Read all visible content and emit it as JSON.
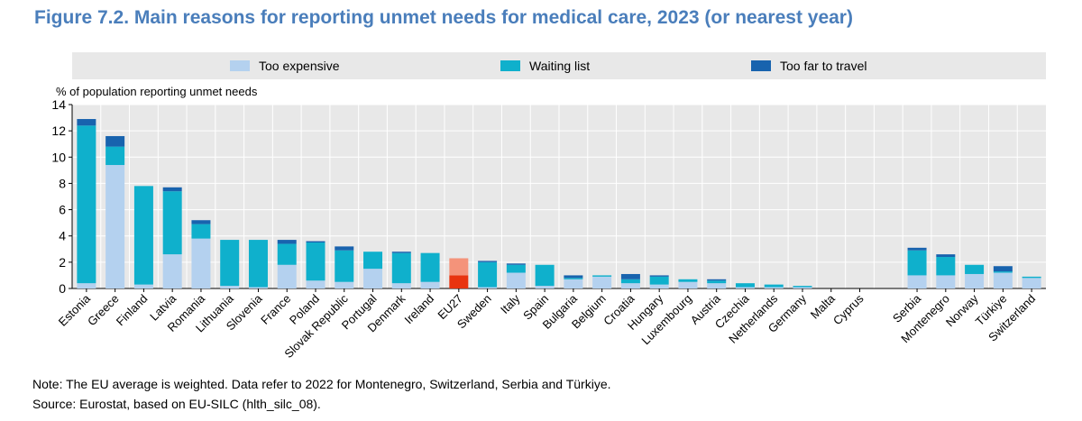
{
  "title": "Figure 7.2. Main reasons for reporting unmet needs for medical care, 2023 (or nearest year)",
  "legend": {
    "expensive": "Too expensive",
    "waiting": "Waiting list",
    "travel": "Too far to travel"
  },
  "note": "Note: The EU average is weighted. Data refer to 2022 for Montenegro, Switzerland, Serbia and Türkiye.",
  "source": "Source: Eurostat, based on EU-SILC (hlth_silc_08).",
  "chart_data": {
    "type": "bar",
    "stacked": true,
    "ylabel": "% of population reporting unmet needs",
    "ylim": [
      0,
      14
    ],
    "yticks": [
      0,
      2,
      4,
      6,
      8,
      10,
      12,
      14
    ],
    "colors": {
      "expensive": "#b4d1ef",
      "waiting": "#0fb0cc",
      "travel": "#1863ae",
      "eu_expensive": "#e8340f",
      "eu_waiting": "#f4937a",
      "eu_travel": "#f7b8a6"
    },
    "highlight": "EU27",
    "categories": [
      "Estonia",
      "Greece",
      "Finland",
      "Latvia",
      "Romania",
      "Lithuania",
      "Slovenia",
      "France",
      "Poland",
      "Slovak Republic",
      "Portugal",
      "Denmark",
      "Ireland",
      "EU27",
      "Sweden",
      "Italy",
      "Spain",
      "Bulgaria",
      "Belgium",
      "Croatia",
      "Hungary",
      "Luxembourg",
      "Austria",
      "Czechia",
      "Netherlands",
      "Germany",
      "Malta",
      "Cyprus",
      "Serbia",
      "Montenegro",
      "Norway",
      "Türkiye",
      "Switzerland"
    ],
    "series": [
      {
        "name": "Too expensive",
        "key": "expensive",
        "values": [
          0.4,
          9.4,
          0.3,
          2.6,
          3.8,
          0.2,
          0.1,
          1.8,
          0.6,
          0.5,
          1.5,
          0.4,
          0.5,
          1.0,
          0.1,
          1.2,
          0.2,
          0.7,
          0.9,
          0.4,
          0.3,
          0.5,
          0.4,
          0.1,
          0.1,
          0.1,
          0.0,
          0.0,
          1.0,
          1.0,
          1.1,
          1.2,
          0.8
        ]
      },
      {
        "name": "Waiting list",
        "key": "waiting",
        "values": [
          12.0,
          1.4,
          7.5,
          4.8,
          1.1,
          3.5,
          3.6,
          1.6,
          2.9,
          2.4,
          1.3,
          2.3,
          2.2,
          1.3,
          1.9,
          0.6,
          1.6,
          0.1,
          0.1,
          0.3,
          0.6,
          0.2,
          0.2,
          0.3,
          0.2,
          0.1,
          0.0,
          0.0,
          1.9,
          1.4,
          0.7,
          0.1,
          0.1
        ]
      },
      {
        "name": "Too far to travel",
        "key": "travel",
        "values": [
          0.5,
          0.8,
          0.0,
          0.3,
          0.3,
          0.0,
          0.0,
          0.3,
          0.1,
          0.3,
          0.0,
          0.1,
          0.0,
          0.0,
          0.1,
          0.1,
          0.0,
          0.2,
          0.0,
          0.4,
          0.1,
          0.0,
          0.1,
          0.0,
          0.0,
          0.0,
          0.0,
          0.0,
          0.2,
          0.2,
          0.0,
          0.4,
          0.0
        ]
      }
    ]
  }
}
